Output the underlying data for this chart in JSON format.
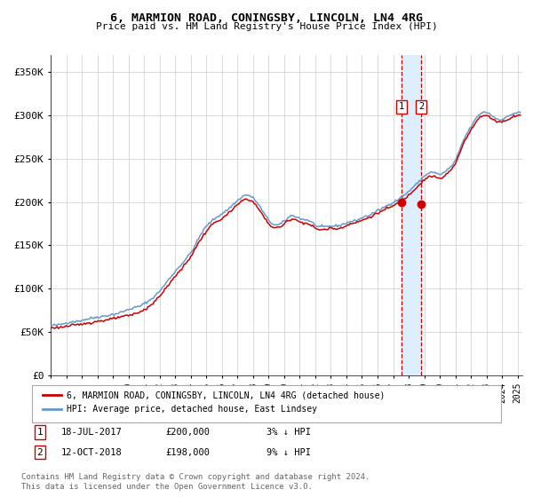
{
  "title": "6, MARMION ROAD, CONINGSBY, LINCOLN, LN4 4RG",
  "subtitle": "Price paid vs. HM Land Registry's House Price Index (HPI)",
  "ylabel_ticks": [
    "£0",
    "£50K",
    "£100K",
    "£150K",
    "£200K",
    "£250K",
    "£300K",
    "£350K"
  ],
  "ytick_vals": [
    0,
    50000,
    100000,
    150000,
    200000,
    250000,
    300000,
    350000
  ],
  "ylim": [
    0,
    370000
  ],
  "xlim_start": 1995.0,
  "xlim_end": 2025.3,
  "sale1_date": 2017.54,
  "sale1_price": 200000,
  "sale2_date": 2018.79,
  "sale2_price": 198000,
  "sale_color": "#cc0000",
  "hpi_color": "#6699cc",
  "price_color": "#cc0000",
  "highlight_color": "#ddeeff",
  "dashed_line_color": "#cc0000",
  "grid_color": "#cccccc",
  "bg_color": "#ffffff",
  "legend_label_price": "6, MARMION ROAD, CONINGSBY, LINCOLN, LN4 4RG (detached house)",
  "legend_label_hpi": "HPI: Average price, detached house, East Lindsey",
  "footer": "Contains HM Land Registry data © Crown copyright and database right 2024.\nThis data is licensed under the Open Government Licence v3.0."
}
